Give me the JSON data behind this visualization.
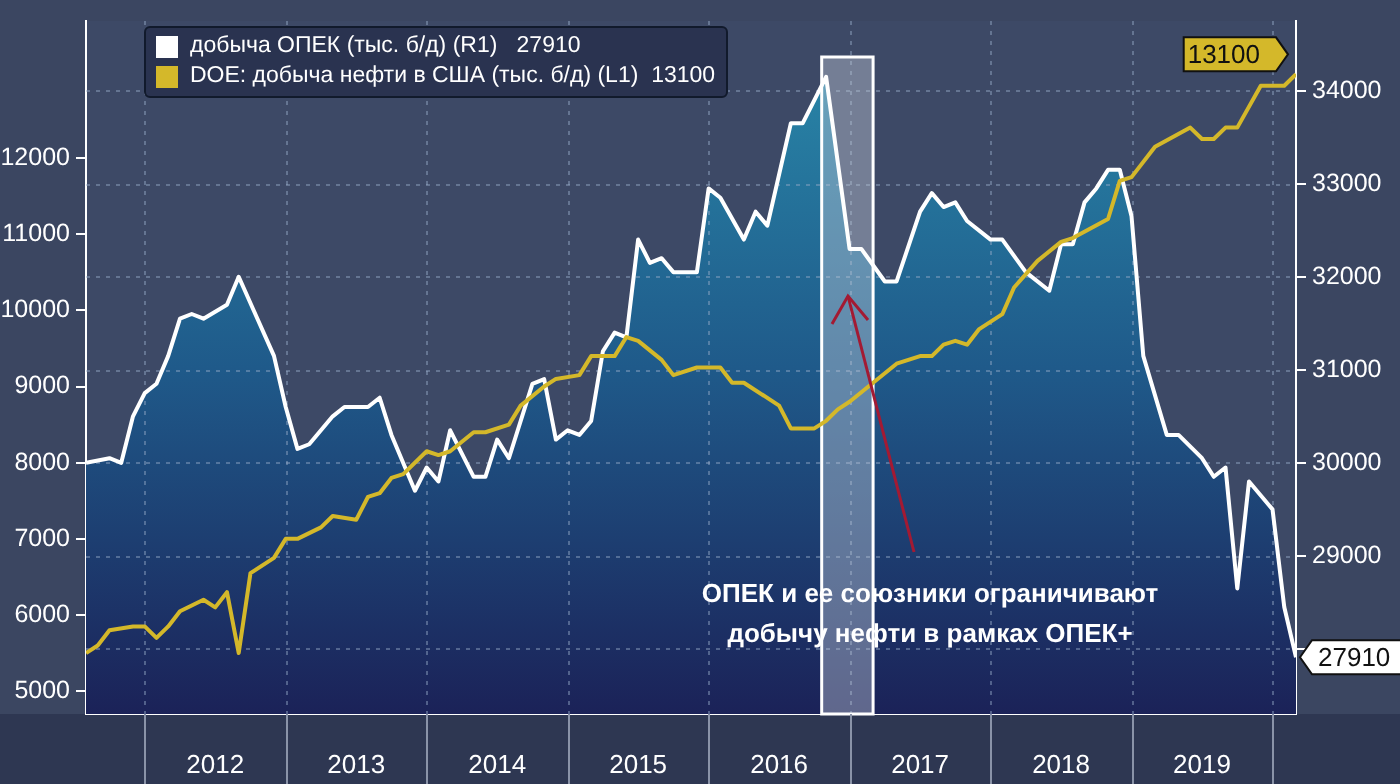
{
  "chart_data": {
    "type": "line",
    "legend": "top left",
    "grid": true,
    "xlim": [
      "2011-08",
      "2020-03"
    ],
    "xticks": [
      {
        "value": "2012-01",
        "label": null
      },
      {
        "value": "2012-07",
        "label": "2012"
      },
      {
        "value": "2013-01",
        "label": null
      },
      {
        "value": "2013-07",
        "label": "2013"
      },
      {
        "value": "2014-01",
        "label": null
      },
      {
        "value": "2014-07",
        "label": "2014"
      },
      {
        "value": "2015-01",
        "label": null
      },
      {
        "value": "2015-07",
        "label": "2015"
      },
      {
        "value": "2016-01",
        "label": null
      },
      {
        "value": "2016-07",
        "label": "2016"
      },
      {
        "value": "2017-01",
        "label": null
      },
      {
        "value": "2017-07",
        "label": "2017"
      },
      {
        "value": "2018-01",
        "label": null
      },
      {
        "value": "2018-07",
        "label": "2018"
      },
      {
        "value": "2019-01",
        "label": null
      },
      {
        "value": "2019-07",
        "label": "2019"
      },
      {
        "value": "2020-01",
        "label": null
      }
    ],
    "ylim": [
      4700,
      13800
    ],
    "yticks": [
      5000,
      6000,
      7000,
      8000,
      9000,
      10000,
      11000,
      12000
    ],
    "y2lim": [
      27300,
      34750
    ],
    "y2ticks": [
      {
        "value": 28000,
        "label": null
      },
      29000,
      30000,
      31000,
      32000,
      33000,
      34000
    ],
    "series": [
      {
        "name": "добыча ОПЕК (тыс. б/д) (R1)   27910",
        "type": "area",
        "axis": "y2",
        "color": "#ffffff",
        "x": [
          "2011-08",
          "2011-10",
          "2011-11",
          "2011-12",
          "2012-01",
          "2012-02",
          "2012-03",
          "2012-04",
          "2012-05",
          "2012-06",
          "2012-08",
          "2012-09",
          "2012-12",
          "2013-01",
          "2013-02",
          "2013-03",
          "2013-05",
          "2013-06",
          "2013-08",
          "2013-09",
          "2013-10",
          "2013-12",
          "2014-01",
          "2014-02",
          "2014-03",
          "2014-05",
          "2014-06",
          "2014-07",
          "2014-08",
          "2014-10",
          "2014-11",
          "2014-12",
          "2015-01",
          "2015-02",
          "2015-03",
          "2015-04",
          "2015-05",
          "2015-06",
          "2015-07",
          "2015-08",
          "2015-09",
          "2015-10",
          "2015-11",
          "2015-12",
          "2016-01",
          "2016-02",
          "2016-04",
          "2016-05",
          "2016-06",
          "2016-08",
          "2016-09",
          "2016-10",
          "2016-11",
          "2017-01",
          "2017-02",
          "2017-04",
          "2017-05",
          "2017-07",
          "2017-08",
          "2017-09",
          "2017-10",
          "2017-11",
          "2018-01",
          "2018-02",
          "2018-04",
          "2018-06",
          "2018-07",
          "2018-08",
          "2018-09",
          "2018-10",
          "2018-11",
          "2018-12",
          "2019-01",
          "2019-02",
          "2019-04",
          "2019-05",
          "2019-07",
          "2019-08",
          "2019-09",
          "2019-10",
          "2019-11",
          "2020-01",
          "2020-02",
          "2020-03"
        ],
        "values": [
          30000,
          30050,
          30000,
          30500,
          30750,
          30850,
          31150,
          31550,
          31600,
          31550,
          31700,
          32000,
          31150,
          30600,
          30150,
          30200,
          30500,
          30600,
          30600,
          30700,
          30300,
          29700,
          29950,
          29800,
          30350,
          29850,
          29850,
          30250,
          30050,
          30850,
          30900,
          30250,
          30350,
          30300,
          30450,
          31200,
          31400,
          31350,
          32400,
          32150,
          32200,
          32050,
          32050,
          32050,
          32950,
          32850,
          32400,
          32700,
          32550,
          33650,
          33650,
          33900,
          34150,
          32300,
          32300,
          31950,
          31950,
          32700,
          32900,
          32750,
          32800,
          32600,
          32400,
          32400,
          32050,
          31850,
          32350,
          32350,
          32800,
          32950,
          33150,
          33150,
          32650,
          31150,
          30300,
          30300,
          30050,
          29850,
          29950,
          28650,
          29800,
          29500,
          28450,
          27910
        ],
        "value_labels": [
          null,
          null,
          null,
          null,
          null,
          null,
          null,
          null,
          null,
          null,
          null,
          null,
          null,
          null,
          null,
          null,
          null,
          null,
          null,
          null,
          null,
          null,
          null,
          null,
          null,
          null,
          null,
          null,
          null,
          null,
          null,
          null,
          null,
          null,
          null,
          null,
          null,
          null,
          null,
          null,
          null,
          null,
          null,
          null,
          null,
          null,
          null,
          null,
          null,
          null,
          null,
          null,
          null,
          null,
          null,
          null,
          null,
          null,
          null,
          null,
          null,
          null,
          null,
          null,
          null,
          null,
          null,
          null,
          null,
          null,
          null,
          null,
          null,
          null,
          null,
          null,
          null,
          null,
          null,
          null,
          null,
          null,
          null,
          "27910"
        ]
      },
      {
        "name": "DOE: добыча нефти в США (тыс. б/д) (L1)  13100",
        "type": "line",
        "axis": "y",
        "color": "#d4b82a",
        "x": [
          "2011-08",
          "2011-09",
          "2011-10",
          "2011-12",
          "2012-01",
          "2012-02",
          "2012-03",
          "2012-04",
          "2012-06",
          "2012-07",
          "2012-08",
          "2012-09",
          "2012-10",
          "2012-12",
          "2013-01",
          "2013-02",
          "2013-04",
          "2013-05",
          "2013-07",
          "2013-08",
          "2013-09",
          "2013-10",
          "2013-11",
          "2014-01",
          "2014-02",
          "2014-03",
          "2014-05",
          "2014-06",
          "2014-08",
          "2014-09",
          "2014-11",
          "2014-12",
          "2015-02",
          "2015-03",
          "2015-05",
          "2015-06",
          "2015-07",
          "2015-09",
          "2015-10",
          "2015-12",
          "2016-02",
          "2016-03",
          "2016-04",
          "2016-07",
          "2016-08",
          "2016-10",
          "2016-11",
          "2016-12",
          "2017-01",
          "2017-03",
          "2017-05",
          "2017-07",
          "2017-08",
          "2017-09",
          "2017-10",
          "2017-11",
          "2017-12",
          "2018-02",
          "2018-03",
          "2018-05",
          "2018-07",
          "2018-08",
          "2018-11",
          "2018-12",
          "2019-01",
          "2019-03",
          "2019-06",
          "2019-07",
          "2019-08",
          "2019-09",
          "2019-10",
          "2019-12",
          "2020-02",
          "2020-03"
        ],
        "values": [
          5500,
          5600,
          5800,
          5850,
          5850,
          5700,
          5850,
          6050,
          6200,
          6100,
          6300,
          5500,
          6550,
          6750,
          7000,
          7000,
          7150,
          7300,
          7250,
          7550,
          7600,
          7800,
          7850,
          8150,
          8100,
          8150,
          8400,
          8400,
          8500,
          8750,
          9000,
          9100,
          9150,
          9400,
          9400,
          9650,
          9600,
          9350,
          9150,
          9250,
          9250,
          9050,
          9050,
          8750,
          8450,
          8450,
          8550,
          8700,
          8800,
          9050,
          9300,
          9400,
          9400,
          9550,
          9600,
          9550,
          9750,
          9950,
          10300,
          10650,
          10900,
          10950,
          11200,
          11700,
          11750,
          12150,
          12400,
          12250,
          12250,
          12400,
          12400,
          12950,
          12950,
          13100
        ],
        "value_labels": [
          null,
          null,
          null,
          null,
          null,
          null,
          null,
          null,
          null,
          null,
          null,
          null,
          null,
          null,
          null,
          null,
          null,
          null,
          null,
          null,
          null,
          null,
          null,
          null,
          null,
          null,
          null,
          null,
          null,
          null,
          null,
          null,
          null,
          null,
          null,
          null,
          null,
          null,
          null,
          null,
          null,
          null,
          null,
          null,
          null,
          null,
          null,
          null,
          null,
          null,
          null,
          null,
          null,
          null,
          null,
          null,
          null,
          null,
          null,
          null,
          null,
          null,
          null,
          null,
          null,
          null,
          null,
          null,
          null,
          null,
          null,
          null,
          null,
          "13100"
        ]
      }
    ],
    "bands": [
      {
        "axis": "x",
        "from": "2016-10-20",
        "to": "2017-03",
        "color": "#c8d0dc"
      }
    ],
    "annotations": [
      "ОПЕК и ее союзники ограничивают\nдобычу нефти в рамках ОПЕК+"
    ]
  }
}
